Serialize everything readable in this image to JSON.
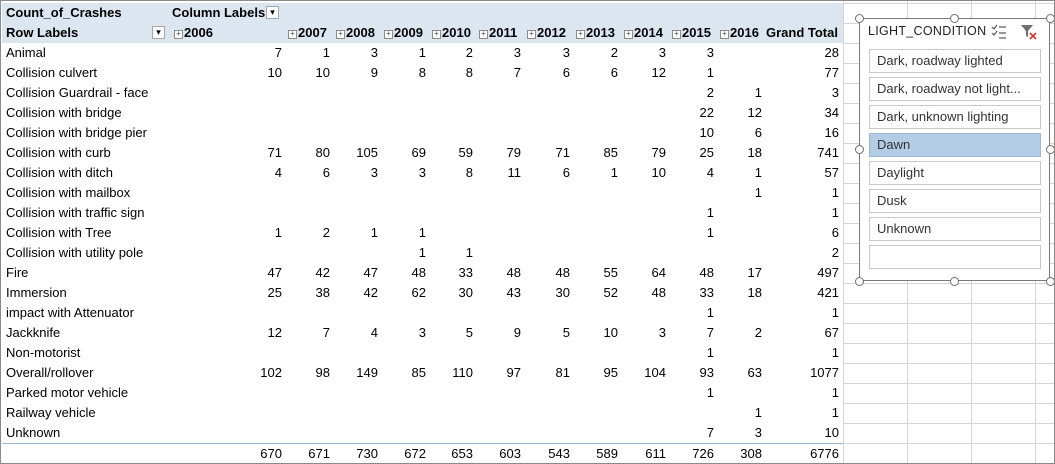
{
  "pivot": {
    "value_field": "Count_of_Crashes",
    "column_labels": "Column Labels",
    "row_labels": "Row Labels",
    "years": [
      "2006",
      "2007",
      "2008",
      "2009",
      "2010",
      "2011",
      "2012",
      "2013",
      "2014",
      "2015",
      "2016"
    ],
    "grand_total_label": "Grand Total",
    "rows": [
      {
        "label": "Animal",
        "values": [
          "7",
          "1",
          "3",
          "1",
          "2",
          "3",
          "3",
          "2",
          "3",
          "3",
          ""
        ],
        "total": "28"
      },
      {
        "label": "Collision culvert",
        "values": [
          "10",
          "10",
          "9",
          "8",
          "8",
          "7",
          "6",
          "6",
          "12",
          "1",
          ""
        ],
        "total": "77"
      },
      {
        "label": "Collision Guardrail - face",
        "values": [
          "",
          "",
          "",
          "",
          "",
          "",
          "",
          "",
          "",
          "2",
          "1"
        ],
        "total": "3"
      },
      {
        "label": "Collision with bridge",
        "values": [
          "",
          "",
          "",
          "",
          "",
          "",
          "",
          "",
          "",
          "22",
          "12"
        ],
        "total": "34"
      },
      {
        "label": "Collision with bridge pier",
        "values": [
          "",
          "",
          "",
          "",
          "",
          "",
          "",
          "",
          "",
          "10",
          "6"
        ],
        "total": "16"
      },
      {
        "label": "Collision with curb",
        "values": [
          "71",
          "80",
          "105",
          "69",
          "59",
          "79",
          "71",
          "85",
          "79",
          "25",
          "18"
        ],
        "total": "741"
      },
      {
        "label": "Collision with ditch",
        "values": [
          "4",
          "6",
          "3",
          "3",
          "8",
          "11",
          "6",
          "1",
          "10",
          "4",
          "1"
        ],
        "total": "57"
      },
      {
        "label": "Collision with mailbox",
        "values": [
          "",
          "",
          "",
          "",
          "",
          "",
          "",
          "",
          "",
          "",
          "1"
        ],
        "total": "1"
      },
      {
        "label": "Collision with traffic sign",
        "values": [
          "",
          "",
          "",
          "",
          "",
          "",
          "",
          "",
          "",
          "1",
          ""
        ],
        "total": "1"
      },
      {
        "label": "Collision with Tree",
        "values": [
          "1",
          "2",
          "1",
          "1",
          "",
          "",
          "",
          "",
          "",
          "1",
          ""
        ],
        "total": "6"
      },
      {
        "label": "Collision with utility pole",
        "values": [
          "",
          "",
          "",
          "1",
          "1",
          "",
          "",
          "",
          "",
          "",
          ""
        ],
        "total": "2"
      },
      {
        "label": "Fire",
        "values": [
          "47",
          "42",
          "47",
          "48",
          "33",
          "48",
          "48",
          "55",
          "64",
          "48",
          "17"
        ],
        "total": "497"
      },
      {
        "label": "Immersion",
        "values": [
          "25",
          "38",
          "42",
          "62",
          "30",
          "43",
          "30",
          "52",
          "48",
          "33",
          "18"
        ],
        "total": "421"
      },
      {
        "label": "impact with Attenuator",
        "values": [
          "",
          "",
          "",
          "",
          "",
          "",
          "",
          "",
          "",
          "1",
          ""
        ],
        "total": "1"
      },
      {
        "label": "Jackknife",
        "values": [
          "12",
          "7",
          "4",
          "3",
          "5",
          "9",
          "5",
          "10",
          "3",
          "7",
          "2"
        ],
        "total": "67"
      },
      {
        "label": "Non-motorist",
        "values": [
          "",
          "",
          "",
          "",
          "",
          "",
          "",
          "",
          "",
          "1",
          ""
        ],
        "total": "1"
      },
      {
        "label": "Overall/rollover",
        "values": [
          "102",
          "98",
          "149",
          "85",
          "110",
          "97",
          "81",
          "95",
          "104",
          "93",
          "63"
        ],
        "total": "1077"
      },
      {
        "label": "Parked motor vehicle",
        "values": [
          "",
          "",
          "",
          "",
          "",
          "",
          "",
          "",
          "",
          "1",
          ""
        ],
        "total": "1"
      },
      {
        "label": "Railway vehicle",
        "values": [
          "",
          "",
          "",
          "",
          "",
          "",
          "",
          "",
          "",
          "",
          "1"
        ],
        "total": "1"
      },
      {
        "label": "Unknown",
        "values": [
          "",
          "",
          "",
          "",
          "",
          "",
          "",
          "",
          "",
          "7",
          "3"
        ],
        "total": "10"
      }
    ],
    "grand_totals": [
      "670",
      "671",
      "730",
      "672",
      "653",
      "603",
      "543",
      "589",
      "611",
      "726",
      "308"
    ],
    "grand_total": "6776"
  },
  "slicer": {
    "title": "LIGHT_CONDITION",
    "items": [
      {
        "label": "Dark, roadway lighted",
        "selected": false
      },
      {
        "label": "Dark, roadway not light...",
        "selected": false
      },
      {
        "label": "Dark, unknown lighting",
        "selected": false
      },
      {
        "label": "Dawn",
        "selected": true
      },
      {
        "label": "Daylight",
        "selected": false
      },
      {
        "label": "Dusk",
        "selected": false
      },
      {
        "label": "Unknown",
        "selected": false
      },
      {
        "label": "",
        "selected": false
      }
    ],
    "icons": [
      "multi-select-icon",
      "clear-filter-icon"
    ]
  },
  "colors": {
    "header_bg": "#dce6f1",
    "selected_item": "#b4cde6"
  }
}
